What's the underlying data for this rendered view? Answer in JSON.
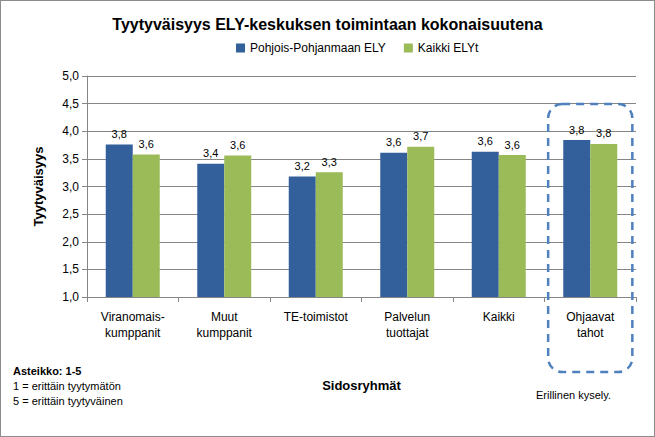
{
  "chart_data": {
    "type": "bar",
    "title": "Tyytyväisyys ELY-keskuksen toimintaan kokonaisuutena",
    "x_label": "Sidosryhmät",
    "y_label": "Tyytyväisyys",
    "categories": [
      "Viranomais-\nkumppanit",
      "Muut\nkumppanit",
      "TE-toimistot",
      "Palvelun\ntuottajat",
      "Kaikki",
      "Ohjaavat\ntahot"
    ],
    "series": [
      {
        "name": "Pohjois-Pohjanmaan ELY",
        "color": "#33609b",
        "values": [
          3.76,
          3.41,
          3.18,
          3.61,
          3.63,
          3.84
        ],
        "value_labels": [
          "3,8",
          "3,4",
          "3,2",
          "3,6",
          "3,6",
          "3,8"
        ]
      },
      {
        "name": "Kaikki ELYt",
        "color": "#9bbb59",
        "values": [
          3.58,
          3.56,
          3.26,
          3.72,
          3.57,
          3.77
        ],
        "value_labels": [
          "3,6",
          "3,6",
          "3,3",
          "3,7",
          "3,6",
          "3,8"
        ]
      }
    ],
    "ylim": [
      1,
      5
    ],
    "yticks": [
      {
        "value": 1,
        "label": "1,0"
      },
      {
        "value": 1.5,
        "label": "1,5"
      },
      {
        "value": 2,
        "label": "2,0"
      },
      {
        "value": 2.5,
        "label": "2,5"
      },
      {
        "value": 3,
        "label": "3,0"
      },
      {
        "value": 3.5,
        "label": "3,5"
      },
      {
        "value": 4,
        "label": "4,0"
      },
      {
        "value": 4.5,
        "label": "4,5"
      },
      {
        "value": 5,
        "label": "5,0"
      }
    ],
    "annotations": [
      "Asteikko: 1-5",
      "1 = erittäin tyytymätön",
      "5 = erittäin tyytyväinen",
      "Erillinen kysely."
    ],
    "grid": true,
    "legend": "top",
    "data_labels": true
  }
}
